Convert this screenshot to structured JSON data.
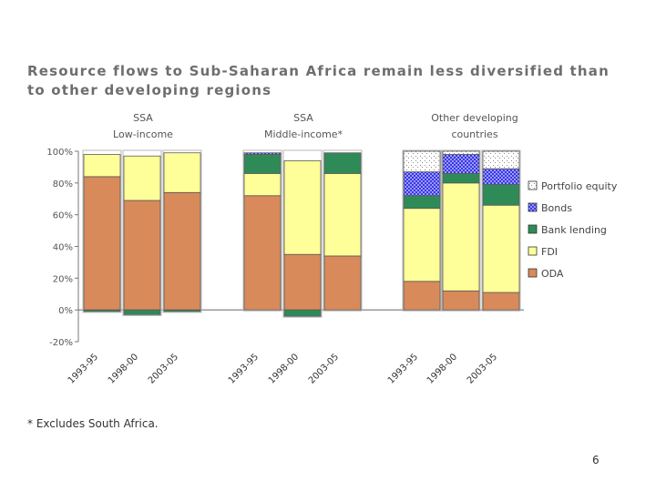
{
  "chart_data": {
    "type": "bar",
    "stacked": true,
    "title": "Resource flows to Sub-Saharan Africa remain less diversified than to other developing regions",
    "groups": [
      {
        "line1": "SSA",
        "line2": "Low-income"
      },
      {
        "line1": "SSA",
        "line2": "Middle-income*"
      },
      {
        "line1": "Other developing",
        "line2": "countries"
      }
    ],
    "periods": [
      "1993-95",
      "1998-00",
      "2003-05"
    ],
    "ylim": [
      -20,
      100
    ],
    "yticks": [
      100,
      80,
      60,
      40,
      20,
      0,
      -20
    ],
    "ytick_labels": [
      "100%",
      "80%",
      "60%",
      "40%",
      "20%",
      "0%",
      "-20%"
    ],
    "legend_position": "right",
    "series": [
      {
        "name": "ODA",
        "key": "oda",
        "color": "#d98a5a",
        "values": [
          [
            84,
            69,
            74
          ],
          [
            72,
            35,
            34
          ],
          [
            18,
            12,
            11
          ]
        ]
      },
      {
        "name": "FDI",
        "key": "fdi",
        "color": "#ffff99",
        "values": [
          [
            14,
            28,
            25
          ],
          [
            14,
            59,
            52
          ],
          [
            46,
            68,
            55
          ]
        ]
      },
      {
        "name": "Bank lending",
        "key": "bank-lending",
        "color": "#2e8b57",
        "values": [
          [
            -1,
            -3,
            -1
          ],
          [
            12,
            -4,
            13
          ],
          [
            8,
            6,
            13
          ]
        ]
      },
      {
        "name": "Bonds",
        "key": "bonds",
        "color": "#3838e0",
        "values": [
          [
            0,
            0,
            0
          ],
          [
            1,
            0,
            0
          ],
          [
            15,
            12,
            10
          ]
        ]
      },
      {
        "name": "Portfolio equity",
        "key": "portfolio-equity",
        "color": "#ffffff",
        "values": [
          [
            0,
            0,
            0
          ],
          [
            0,
            0,
            0
          ],
          [
            13,
            2,
            11
          ]
        ]
      }
    ],
    "legend_order": [
      "Portfolio equity",
      "Bonds",
      "Bank lending",
      "FDI",
      "ODA"
    ]
  },
  "footnote": "* Excludes South Africa.",
  "page_number": "6"
}
